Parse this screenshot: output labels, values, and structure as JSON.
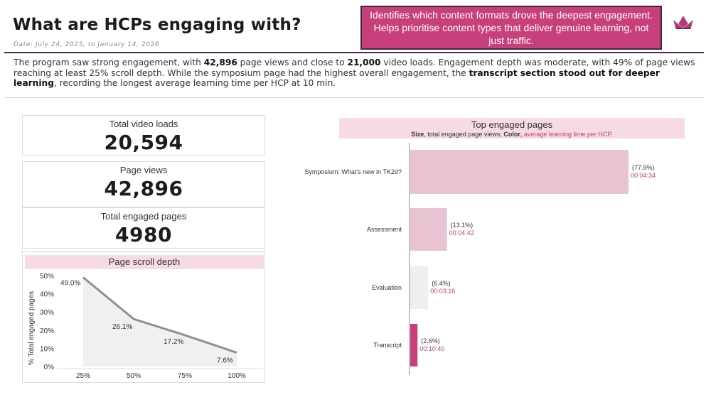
{
  "header": {
    "title": "What are HCPs engaging with?",
    "date_range": "Date: July 24, 2025, to January 14, 2026",
    "callout": "Identifies which content formats drove the deepest engagement. Helps prioritise content types that deliver genuine learning, not just traffic."
  },
  "summary": {
    "p1": "The program saw strong engagement, with ",
    "b1": "42,896",
    "p2": " page views and close to ",
    "b2": "21,000",
    "p3": " video loads. Engagement depth was moderate, with 49% of page views reaching at least 25% scroll depth. While the symposium page had the highest overall engagement, the ",
    "b3": "transcript section stood out for deeper learning",
    "p4": ", recording the longest average learning time per HCP at 10 min."
  },
  "kpis": {
    "video_loads": {
      "label": "Total video loads",
      "value": "20,594"
    },
    "page_views": {
      "label": "Page views",
      "value": "42,896"
    },
    "engaged_pages": {
      "label": "Total engaged pages",
      "value": "4980"
    }
  },
  "scroll_panel": {
    "title": "Page scroll depth"
  },
  "top_pages": {
    "title": "Top engaged pages",
    "subtitle_size": "Size",
    "subtitle_mid": ", total engaged page views; ",
    "subtitle_color": "Color",
    "subtitle_sep": ", ",
    "subtitle_pink": "average learning time per HCP",
    "subtitle_end": "."
  },
  "colors": {
    "accent": "#c8407a",
    "header_bg": "#f6dbe4",
    "navy": "#3d2a55"
  },
  "chart_data": [
    {
      "type": "area",
      "title": "Page scroll depth",
      "xlabel": "",
      "ylabel": "% Total engaged pages",
      "categories": [
        "25%",
        "50%",
        "75%",
        "100%"
      ],
      "values": [
        49.0,
        26.1,
        17.2,
        7.6
      ],
      "labels": [
        "49.0%",
        "26.1%",
        "17.2%",
        "7.6%"
      ],
      "ylim": [
        0,
        50
      ],
      "yticks": [
        "0%",
        "10%",
        "20%",
        "30%",
        "40%",
        "50%"
      ],
      "line_color": "#8f918f",
      "fill_color": "#eef1ee"
    },
    {
      "type": "bar",
      "orientation": "horizontal",
      "title": "Top engaged pages",
      "categories": [
        "Symposium: What's new in TK2d?",
        "Assessment",
        "Evaluation",
        "Transcript"
      ],
      "values": [
        77.9,
        13.1,
        6.4,
        2.6
      ],
      "pct_labels": [
        "(77.9%)",
        "(13.1%)",
        "(6.4%)",
        "(2.6%)"
      ],
      "time_labels": [
        "00:04:34",
        "00:04:42",
        "00:03:16",
        "00:10:40"
      ],
      "bar_colors": [
        "#e8c3d2",
        "#e8c3d2",
        "#efefef",
        "#c8407a"
      ]
    }
  ]
}
